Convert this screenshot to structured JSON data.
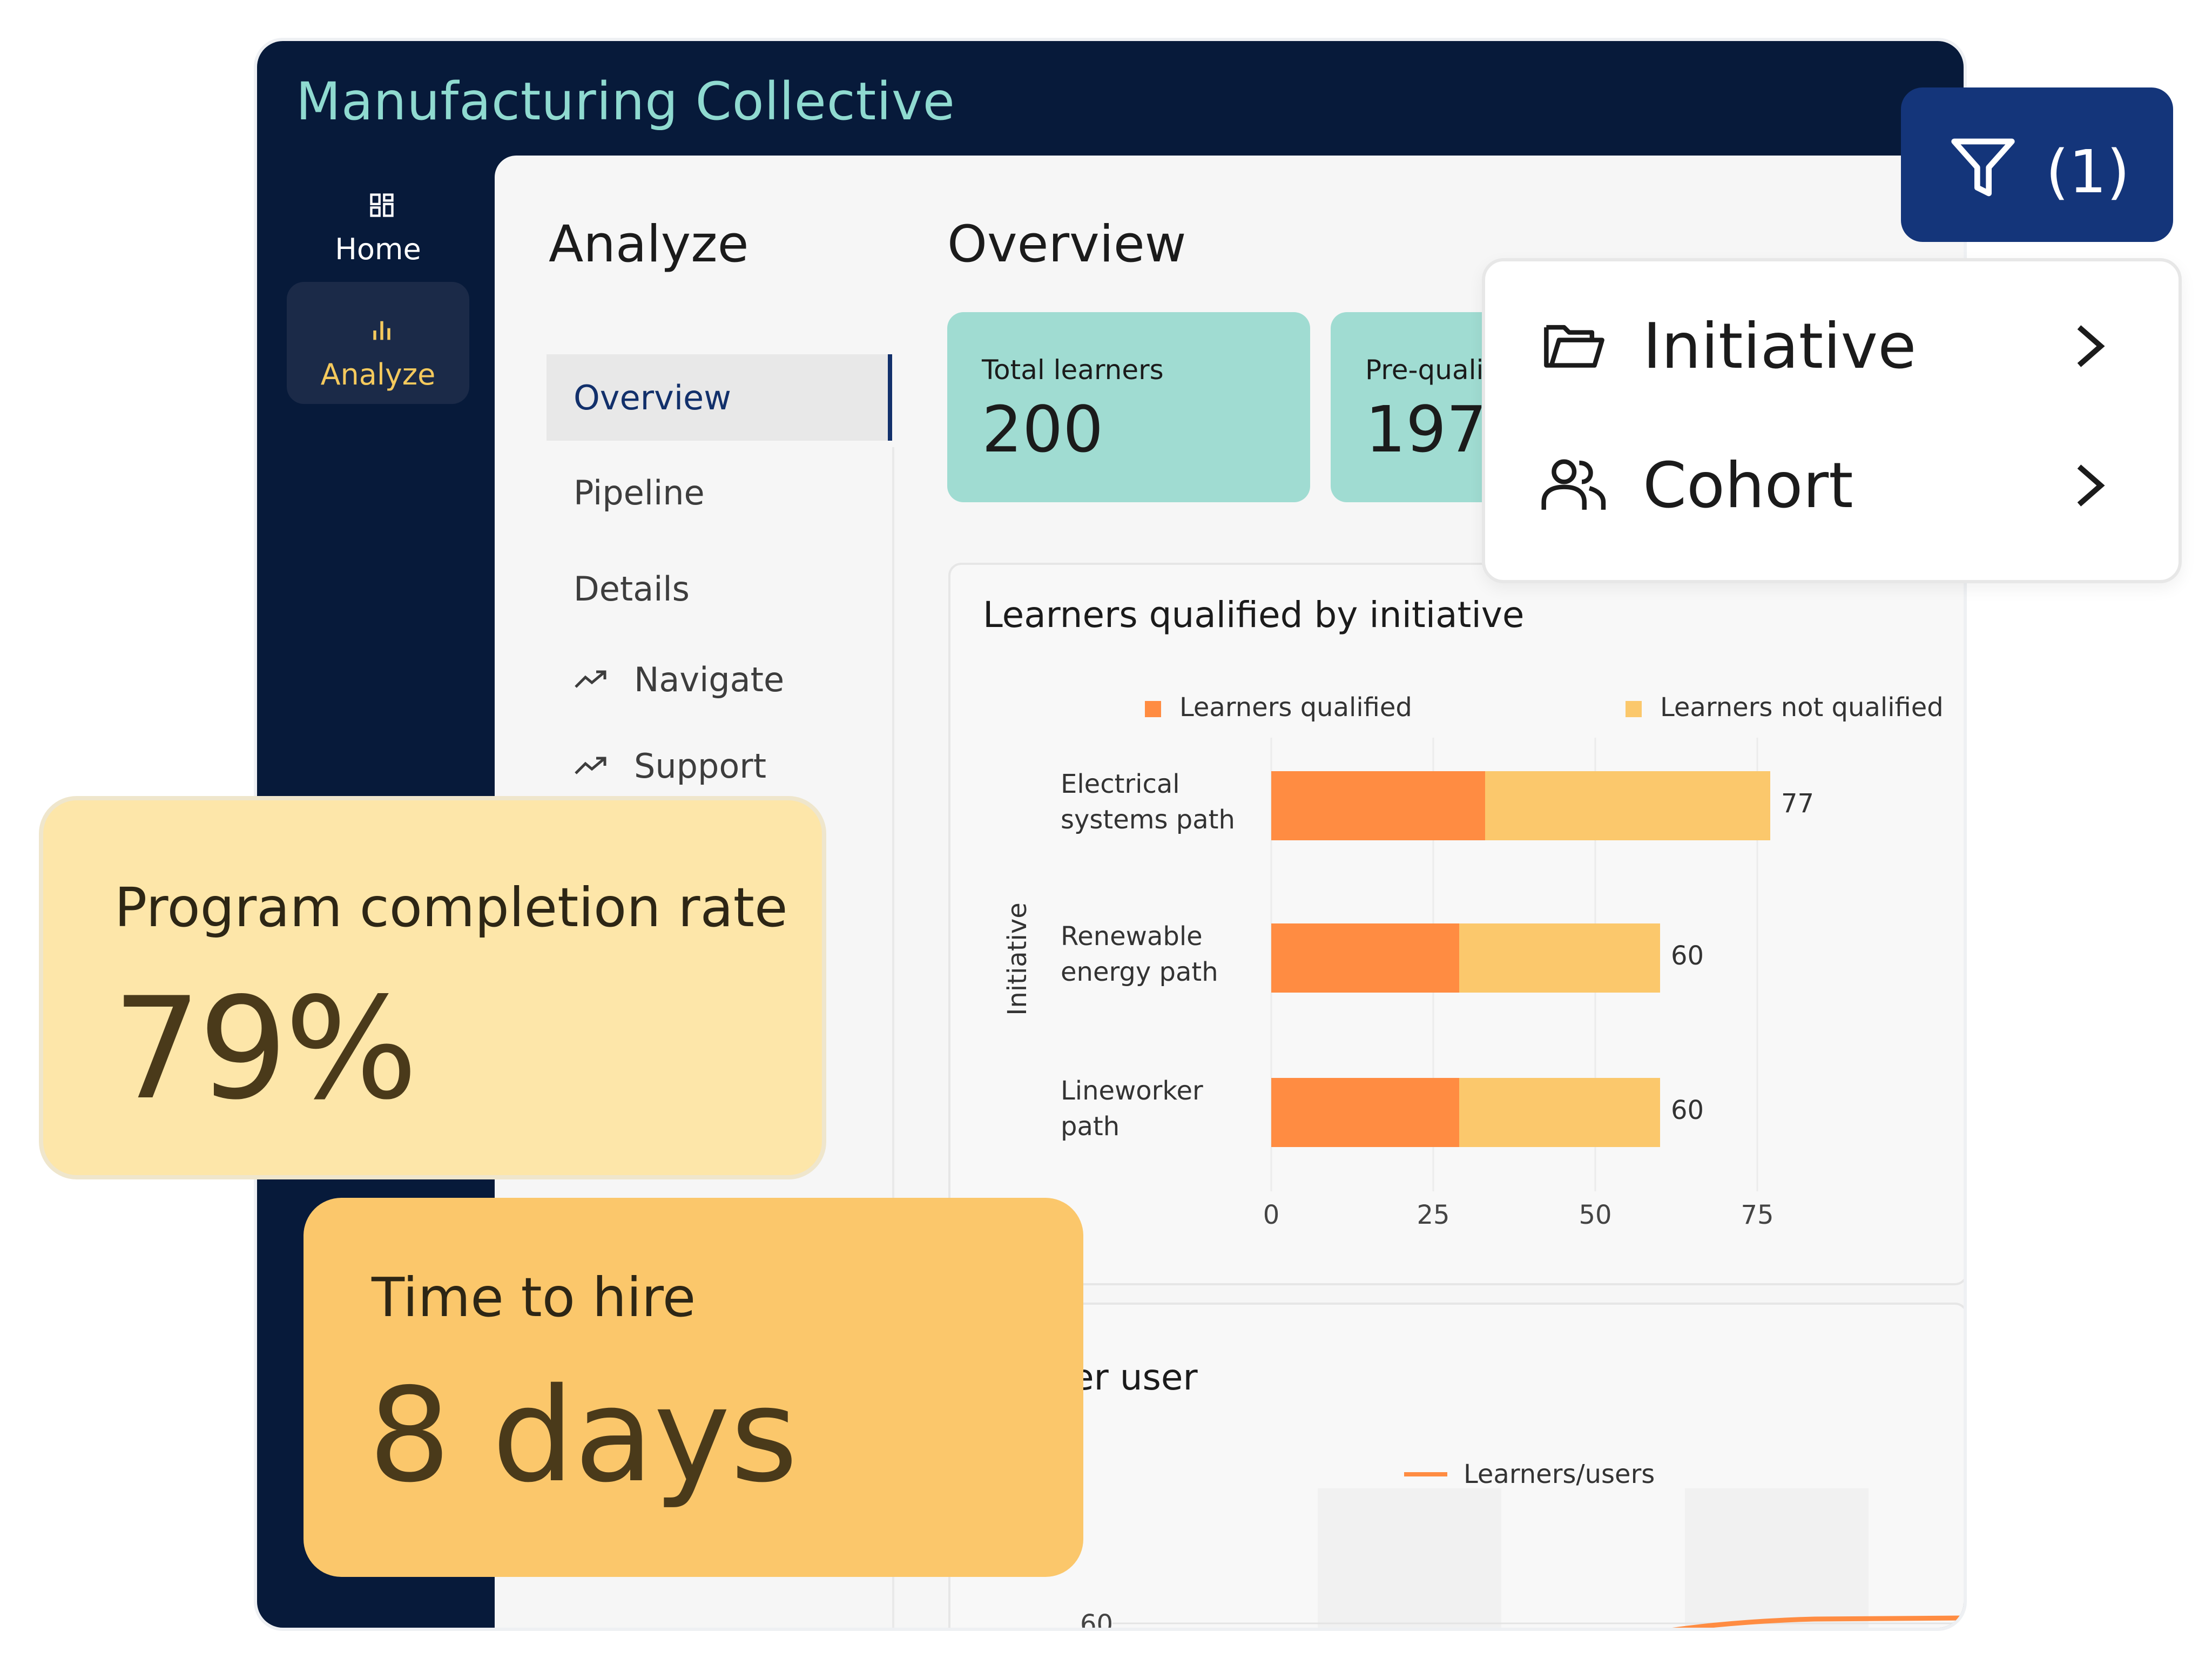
{
  "app": {
    "title": "Manufacturing Collective"
  },
  "nav": {
    "items": [
      {
        "label": "Home",
        "icon": "grid-icon"
      },
      {
        "label": "Analyze",
        "icon": "bar-chart-icon",
        "active": true
      }
    ]
  },
  "section": {
    "title": "Analyze",
    "subnav": [
      {
        "label": "Overview",
        "active": true
      },
      {
        "label": "Pipeline"
      },
      {
        "label": "Details"
      },
      {
        "label": "Navigate",
        "icon": "trend-up-icon"
      },
      {
        "label": "Support",
        "icon": "trend-up-icon"
      }
    ]
  },
  "overview": {
    "title": "Overview",
    "stats": [
      {
        "label": "Total learners",
        "value": "200"
      },
      {
        "label": "Pre-qualif",
        "value": "197"
      }
    ]
  },
  "filter": {
    "count": "(1)",
    "icon": "filter-icon",
    "menu": [
      {
        "label": "Initiative",
        "icon": "folder-icon"
      },
      {
        "label": "Cohort",
        "icon": "users-icon"
      }
    ]
  },
  "chart_data": [
    {
      "type": "bar",
      "orientation": "horizontal",
      "stacked": true,
      "title": "Learners qualified by initiative",
      "ylabel": "Initiative",
      "categories": [
        [
          "Electrical",
          "systems path"
        ],
        [
          "Renewable",
          "energy path"
        ],
        [
          "Lineworker",
          "path"
        ]
      ],
      "series": [
        {
          "name": "Learners qualified",
          "values": [
            33,
            29,
            29
          ],
          "color": "#ff8c42"
        },
        {
          "name": "Learners not qualified",
          "values": [
            44,
            31,
            31
          ],
          "color": "#fbc86c"
        }
      ],
      "totals": [
        "77",
        "60",
        "60"
      ],
      "xticks": [
        "0",
        "25",
        "50",
        "75"
      ],
      "xlim": [
        0,
        85
      ],
      "legend": "top",
      "grid": true
    },
    {
      "type": "line",
      "title": "ers per user",
      "series": [
        {
          "name": "Learners/users",
          "color": "#ff8c42"
        }
      ],
      "ytick_visible": "60",
      "legend": "top"
    }
  ],
  "kpis": {
    "completion": {
      "label": "Program completion rate",
      "value": "79%"
    },
    "hire": {
      "label": "Time to hire",
      "value": "8 days"
    }
  }
}
